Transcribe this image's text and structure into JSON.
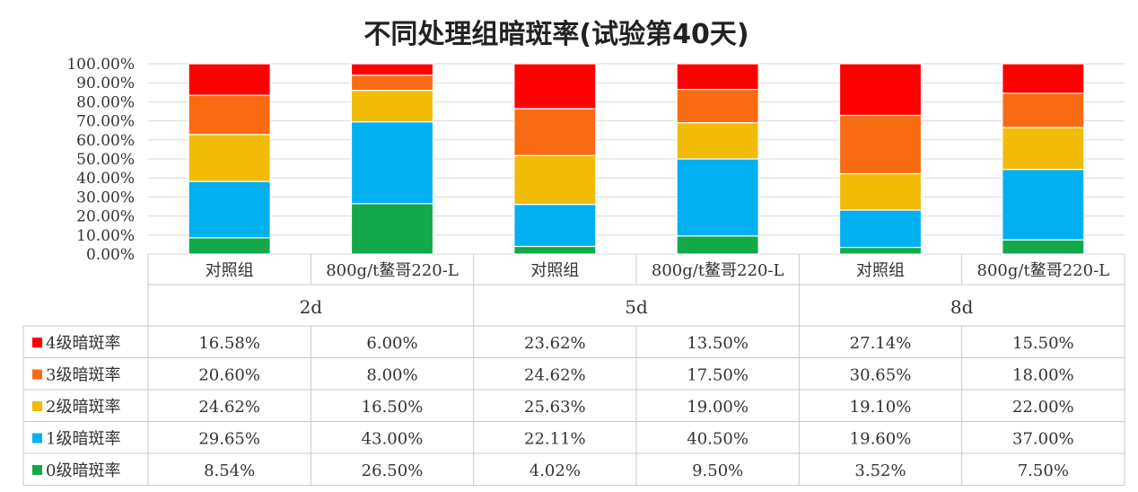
{
  "chart_data": {
    "type": "bar",
    "stacked": true,
    "title": "不同处理组暗斑率(试验第40天)",
    "ylim": [
      0,
      100
    ],
    "y_ticks": [
      "0.00%",
      "10.00%",
      "20.00%",
      "30.00%",
      "40.00%",
      "50.00%",
      "60.00%",
      "70.00%",
      "80.00%",
      "90.00%",
      "100.00%"
    ],
    "grid": true,
    "legend_position": "data-table-left",
    "categories": [
      "对照组",
      "800g/t鳌哥220-L",
      "对照组",
      "800g/t鳌哥220-L",
      "对照组",
      "800g/t鳌哥220-L"
    ],
    "groups": [
      {
        "label": "2d",
        "span": 2
      },
      {
        "label": "5d",
        "span": 2
      },
      {
        "label": "8d",
        "span": 2
      }
    ],
    "series": [
      {
        "name": "0级暗斑率",
        "color": "#13a84a",
        "values": [
          8.54,
          26.5,
          4.02,
          9.5,
          3.52,
          7.5
        ],
        "labels": [
          "8.54%",
          "26.50%",
          "4.02%",
          "9.50%",
          "3.52%",
          "7.50%"
        ]
      },
      {
        "name": "1级暗斑率",
        "color": "#00b0f0",
        "values": [
          29.65,
          43.0,
          22.11,
          40.5,
          19.6,
          37.0
        ],
        "labels": [
          "29.65%",
          "43.00%",
          "22.11%",
          "40.50%",
          "19.60%",
          "37.00%"
        ]
      },
      {
        "name": "2级暗斑率",
        "color": "#f2bb07",
        "values": [
          24.62,
          16.5,
          25.63,
          19.0,
          19.1,
          22.0
        ],
        "labels": [
          "24.62%",
          "16.50%",
          "25.63%",
          "19.00%",
          "19.10%",
          "22.00%"
        ]
      },
      {
        "name": "3级暗斑率",
        "color": "#f86b12",
        "values": [
          20.6,
          8.0,
          24.62,
          17.5,
          30.65,
          18.0
        ],
        "labels": [
          "20.60%",
          "8.00%",
          "24.62%",
          "17.50%",
          "30.65%",
          "18.00%"
        ]
      },
      {
        "name": "4级暗斑率",
        "color": "#ff0000",
        "values": [
          16.58,
          6.0,
          23.62,
          13.5,
          27.14,
          15.5
        ],
        "labels": [
          "16.58%",
          "6.00%",
          "23.62%",
          "13.50%",
          "27.14%",
          "15.50%"
        ]
      }
    ],
    "table_row_order": [
      "4级暗斑率",
      "3级暗斑率",
      "2级暗斑率",
      "1级暗斑率",
      "0级暗斑率"
    ]
  }
}
